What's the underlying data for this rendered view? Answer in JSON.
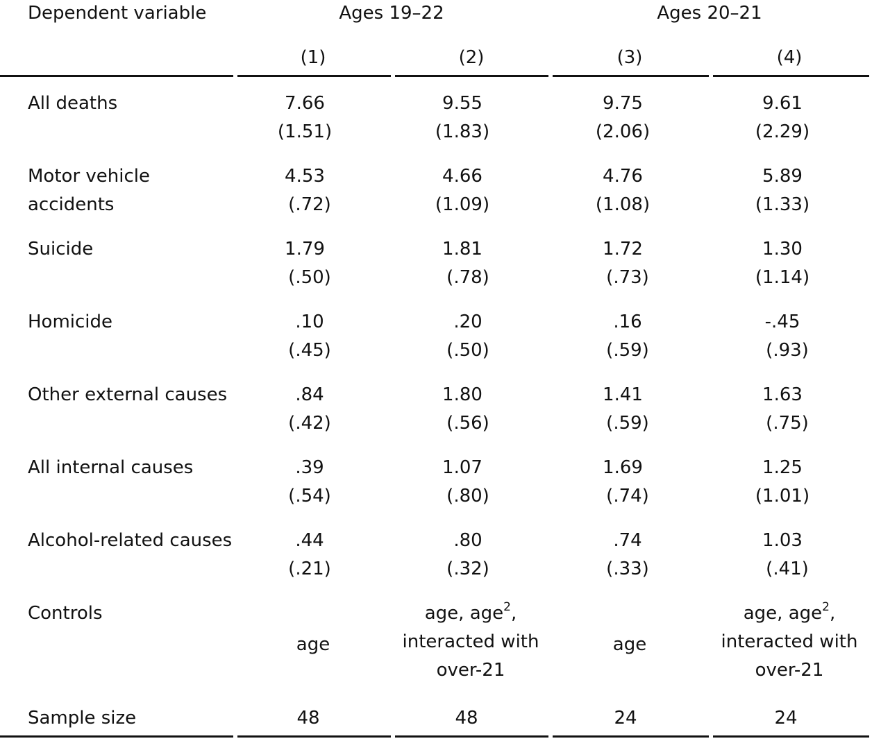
{
  "header": {
    "dependent_variable": "Dependent variable",
    "group_a": "Ages 19–22",
    "group_b": "Ages 20–21",
    "columns": [
      "(1)",
      "(2)",
      "(3)",
      "(4)"
    ]
  },
  "rows": [
    {
      "label": "All deaths",
      "label2": "",
      "coef": [
        "7.66",
        "9.55",
        "9.75",
        "9.61"
      ],
      "se": [
        "(1.51)",
        "(1.83)",
        "(2.06)",
        "(2.29)"
      ]
    },
    {
      "label": "Motor vehicle",
      "label2": "accidents",
      "coef": [
        "4.53",
        "4.66",
        "4.76",
        "5.89"
      ],
      "se": [
        "(.72)",
        "(1.09)",
        "(1.08)",
        "(1.33)"
      ]
    },
    {
      "label": "Suicide",
      "label2": "",
      "coef": [
        "1.79",
        "1.81",
        "1.72",
        "1.30"
      ],
      "se": [
        "(.50)",
        "(.78)",
        "(.73)",
        "(1.14)"
      ]
    },
    {
      "label": "Homicide",
      "label2": "",
      "coef": [
        ".10",
        ".20",
        ".16",
        "-.45"
      ],
      "se": [
        "(.45)",
        "(.50)",
        "(.59)",
        "(.93)"
      ]
    },
    {
      "label": "Other external causes",
      "label2": "",
      "coef": [
        ".84",
        "1.80",
        "1.41",
        "1.63"
      ],
      "se": [
        "(.42)",
        "(.56)",
        "(.59)",
        "(.75)"
      ]
    },
    {
      "label": "All internal causes",
      "label2": "",
      "coef": [
        ".39",
        "1.07",
        "1.69",
        "1.25"
      ],
      "se": [
        "(.54)",
        "(.80)",
        "(.74)",
        "(1.01)"
      ]
    },
    {
      "label": "Alcohol-related causes",
      "label2": "",
      "coef": [
        ".44",
        ".80",
        ".74",
        "1.03"
      ],
      "se": [
        "(.21)",
        "(.32)",
        "(.33)",
        "(.41)"
      ]
    }
  ],
  "controls": {
    "label": "Controls",
    "col1": "age",
    "col2_line1": "age, age",
    "col2_sup": "2",
    "col2_line1_suffix": ",",
    "col2_line2": "interacted with",
    "col2_line3": "over-21",
    "col3": "age",
    "col4_line1": "age, age",
    "col4_sup": "2",
    "col4_line1_suffix": ",",
    "col4_line2": "interacted with",
    "col4_line3": "over-21"
  },
  "sample": {
    "label": "Sample size",
    "values": [
      "48",
      "48",
      "24",
      "24"
    ]
  }
}
